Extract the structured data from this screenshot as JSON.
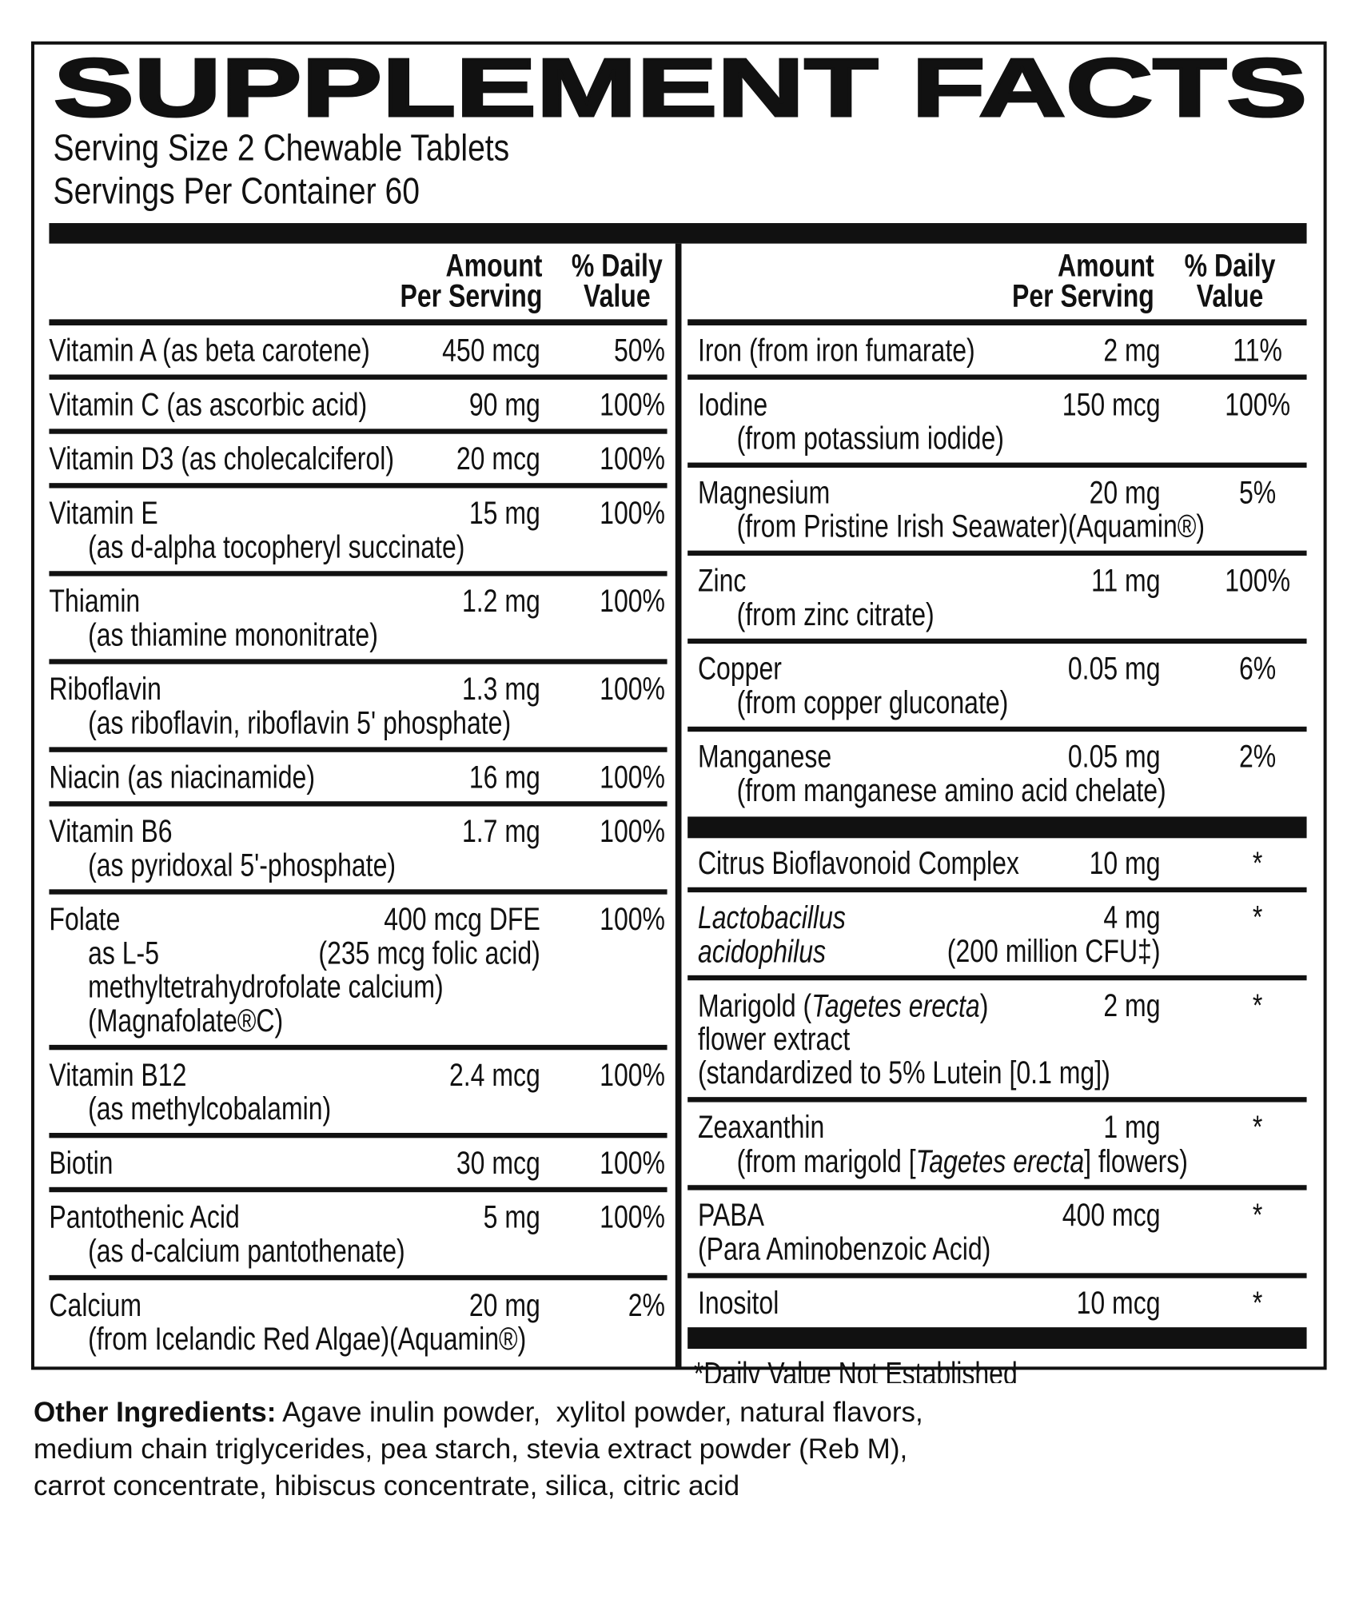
{
  "title": "SUPPLEMENT FACTS",
  "serving_size": "Serving Size 2 Chewable Tablets",
  "servings_per_container": "Servings Per Container 60",
  "column_header": {
    "amount": [
      "Amount",
      "Per Serving"
    ],
    "daily_value": [
      "% Daily",
      "Value"
    ]
  },
  "left_column": {
    "rows": [
      {
        "name": "Vitamin A (as beta carotene)",
        "amount": "450 mcg",
        "dv": "50%"
      },
      {
        "name": "Vitamin C (as ascorbic acid)",
        "amount": "90 mg",
        "dv": "100%"
      },
      {
        "name": "Vitamin D3 (as cholecalciferol)",
        "amount": "20 mcg",
        "dv": "100%"
      },
      {
        "name": "Vitamin E",
        "details": [
          "(as d-alpha tocopheryl succinate)"
        ],
        "amount": "15 mg",
        "dv": "100%"
      },
      {
        "name": "Thiamin",
        "details": [
          "(as thiamine mononitrate)"
        ],
        "amount": "1.2 mg",
        "dv": "100%"
      },
      {
        "name": "Riboflavin",
        "details": [
          "(as riboflavin, riboflavin 5' phosphate)"
        ],
        "amount": "1.3 mg",
        "dv": "100%"
      },
      {
        "name": "Niacin (as niacinamide)",
        "amount": "16 mg",
        "dv": "100%"
      },
      {
        "name": "Vitamin B6",
        "details": [
          "(as pyridoxal 5'-phosphate)"
        ],
        "amount": "1.7 mg",
        "dv": "100%"
      },
      {
        "name": "Folate",
        "details": [
          "as L-5",
          "methyltetrahydrofolate calcium)",
          "(Magnafolate®C)"
        ],
        "amount": "400 mcg DFE",
        "amount_detail": "(235 mcg folic acid)",
        "dv": "100%"
      },
      {
        "name": "Vitamin B12",
        "details": [
          "(as methylcobalamin)"
        ],
        "amount": "2.4 mcg",
        "dv": "100%"
      },
      {
        "name": "Biotin",
        "amount": "30 mcg",
        "dv": "100%"
      },
      {
        "name": "Pantothenic Acid",
        "details": [
          "(as d-calcium pantothenate)"
        ],
        "amount": "5 mg",
        "dv": "100%"
      },
      {
        "name": "Calcium",
        "details": [
          "(from Icelandic Red Algae)(Aquamin®)"
        ],
        "amount": "20 mg",
        "dv": "2%"
      }
    ]
  },
  "right_column": {
    "rows": [
      {
        "name": "Iron (from iron fumarate)",
        "amount": "2 mg",
        "dv": "11%"
      },
      {
        "name": "Iodine",
        "details": [
          "(from potassium iodide)"
        ],
        "amount": "150 mcg",
        "dv": "100%"
      },
      {
        "name": "Magnesium",
        "details": [
          "(from Pristine Irish Seawater)(Aquamin®)"
        ],
        "amount": "20 mg",
        "dv": "5%"
      },
      {
        "name": "Zinc",
        "details": [
          "(from zinc citrate)"
        ],
        "amount": "11 mg",
        "dv": "100%"
      },
      {
        "name": "Copper",
        "details": [
          "(from copper gluconate)"
        ],
        "amount": "0.05 mg",
        "dv": "6%"
      },
      {
        "name": "Manganese",
        "details": [
          "(from manganese amino acid chelate)"
        ],
        "amount": "0.05 mg",
        "dv": "2%"
      }
    ],
    "other_rows": [
      {
        "name": "Citrus Bioflavonoid Complex",
        "amount": "10 mg",
        "dv": "*"
      },
      {
        "name": [
          {
            "text": "Lactobacillus",
            "italic": true
          }
        ],
        "details": [
          [
            {
              "text": "acidophilus",
              "italic": true
            }
          ]
        ],
        "indent": false,
        "amount": "4 mg",
        "amount_detail": "(200 million CFU‡)",
        "dv": "*"
      },
      {
        "name": [
          {
            "text": "Marigold ("
          },
          {
            "text": "Tagetes erecta",
            "italic": true
          },
          {
            "text": ")"
          }
        ],
        "details": [
          "flower extract",
          "(standardized to 5% Lutein [0.1 mg])"
        ],
        "indent": false,
        "amount": "2 mg",
        "dv": "*"
      },
      {
        "name": "Zeaxanthin",
        "details": [
          [
            {
              "text": "(from marigold ["
            },
            {
              "text": "Tagetes erecta",
              "italic": true
            },
            {
              "text": "] flowers)"
            }
          ]
        ],
        "amount": "1 mg",
        "dv": "*"
      },
      {
        "name": "PABA",
        "details": [
          "(Para Aminobenzoic Acid)"
        ],
        "indent": false,
        "amount": "400 mcg",
        "dv": "*"
      },
      {
        "name": "Inositol",
        "amount": "10 mcg",
        "dv": "*"
      }
    ],
    "footnote": "*Daily Value Not Established"
  },
  "other_ingredients": {
    "label": "Other Ingredients:",
    "text": "Agave inulin powder,  xylitol powder, natural flavors, medium chain triglycerides, pea starch, stevia extract powder (Reb M), carrot concentrate, hibiscus concentrate, silica, citric acid"
  }
}
